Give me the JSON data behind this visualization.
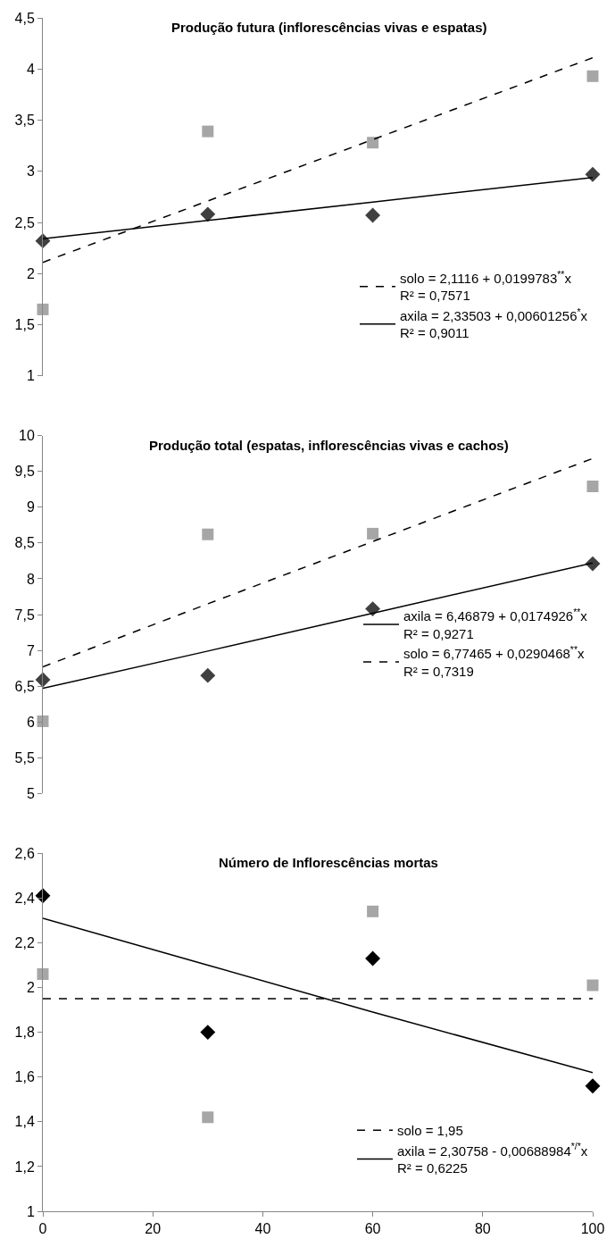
{
  "chart_data": [
    {
      "type": "scatter",
      "title": "Produção futura (inflorescências vivas e espatas)",
      "x": [
        0,
        30,
        60,
        100
      ],
      "ylim": [
        1,
        4.5
      ],
      "yticks": [
        1,
        {
          "value": 1.5,
          "label": "1,5"
        },
        2,
        {
          "value": 2.5,
          "label": "2,5"
        },
        3,
        {
          "value": 3.5,
          "label": "3,5"
        },
        4,
        {
          "value": 4.5,
          "label": "4,5"
        }
      ],
      "tick_labels": "y",
      "legend": "bottom right",
      "series": [
        {
          "marker": "diamond",
          "color": "#404040",
          "values": [
            2.32,
            2.58,
            2.57,
            2.97
          ]
        },
        {
          "marker": "square",
          "color": "#a6a6a6",
          "values": [
            1.65,
            3.39,
            3.28,
            3.93
          ]
        },
        {
          "type": "line",
          "line_style": "dashed",
          "name": "solo = 2,1116 + 0,0199783$^{**}$x\nR² = 0,7571",
          "color": "#000000",
          "values": [
            2.11,
            2.71,
            3.31,
            4.11
          ]
        },
        {
          "type": "line",
          "line_style": "solid",
          "name": "axila = 2,33503 + 0,00601256$^{*}$x\nR² = 0,9011",
          "color": "#000000",
          "values": [
            2.34,
            2.52,
            2.7,
            2.94
          ]
        }
      ]
    },
    {
      "type": "scatter",
      "title": "Produção total (espatas, inflorescências vivas e cachos)",
      "x": [
        0,
        30,
        60,
        100
      ],
      "ylim": [
        5,
        10
      ],
      "yticks": [
        5,
        {
          "value": 5.5,
          "label": "5,5"
        },
        6,
        {
          "value": 6.5,
          "label": "6,5"
        },
        7,
        {
          "value": 7.5,
          "label": "7,5"
        },
        8,
        {
          "value": 8.5,
          "label": "8,5"
        },
        9,
        {
          "value": 9.5,
          "label": "9,5"
        },
        10
      ],
      "tick_labels": "y",
      "legend": "right",
      "series": [
        {
          "marker": "diamond",
          "color": "#404040",
          "values": [
            6.59,
            6.65,
            7.58,
            8.21
          ]
        },
        {
          "marker": "square",
          "color": "#a6a6a6",
          "values": [
            6.01,
            8.62,
            8.63,
            9.29
          ]
        },
        {
          "type": "line",
          "line_style": "solid",
          "name": "axila = 6,46879 + 0,0174926$^{**}$x\nR² = 0,9271",
          "color": "#000000",
          "values": [
            6.47,
            6.99,
            7.52,
            8.22
          ]
        },
        {
          "type": "line",
          "line_style": "dashed",
          "name": "solo = 6,77465 + 0,0290468$^{**}$x\nR² = 0,7319",
          "color": "#000000",
          "values": [
            6.77,
            7.65,
            8.52,
            9.68
          ]
        }
      ]
    },
    {
      "type": "scatter",
      "title": "Número de Inflorescências mortas",
      "x": [
        0,
        30,
        60,
        100
      ],
      "xlim": [
        0,
        100
      ],
      "xticks": [
        0,
        20,
        40,
        60,
        80,
        100
      ],
      "ylim": [
        1,
        2.6
      ],
      "yticks": [
        1,
        {
          "value": 1.2,
          "label": "1,2"
        },
        {
          "value": 1.4,
          "label": "1,4"
        },
        {
          "value": 1.6,
          "label": "1,6"
        },
        {
          "value": 1.8,
          "label": "1,8"
        },
        2,
        {
          "value": 2.2,
          "label": "2,2"
        },
        {
          "value": 2.4,
          "label": "2,4"
        },
        {
          "value": 2.6,
          "label": "2,6"
        }
      ],
      "legend": "bottom right",
      "series": [
        {
          "marker": "diamond",
          "color": "#000000",
          "values": [
            2.41,
            1.8,
            2.13,
            1.56
          ]
        },
        {
          "marker": "square",
          "color": "#a6a6a6",
          "values": [
            2.06,
            1.42,
            2.34,
            2.01
          ]
        },
        {
          "type": "line",
          "line_style": "dashed",
          "name": "solo = 1,95",
          "color": "#000000",
          "values": [
            1.95,
            1.95,
            1.95,
            1.95
          ]
        },
        {
          "type": "line",
          "line_style": "solid",
          "name": "axila = 2,30758 - 0,00688984$^{*/*}$x\nR² = 0,6225",
          "color": "#000000",
          "values": [
            2.31,
            2.1,
            1.89,
            1.62
          ]
        }
      ]
    }
  ]
}
